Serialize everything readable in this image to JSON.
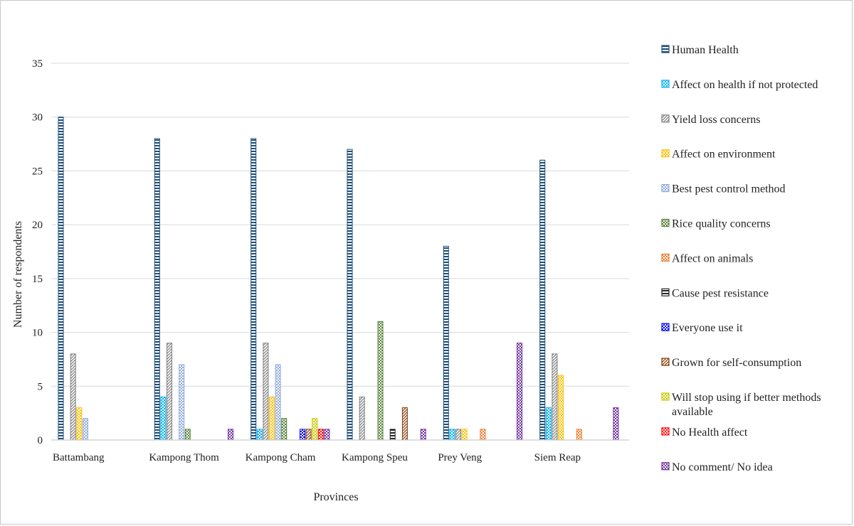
{
  "chart_data": {
    "type": "bar",
    "xlabel": "Provinces",
    "ylabel": "Number of respondents",
    "ylim": [
      0,
      35
    ],
    "yticks": [
      0,
      5,
      10,
      15,
      20,
      25,
      30,
      35
    ],
    "grid": true,
    "legend_position": "right",
    "categories": [
      "Battambang",
      "Kampong Thom",
      "Kampong Cham",
      "Kampong Speu",
      "Prey Veng",
      "Siem Reap"
    ],
    "series": [
      {
        "name": "Human Health",
        "color": "#1f4e79",
        "values": [
          30,
          28,
          28,
          27,
          18,
          26
        ]
      },
      {
        "name": "Affect on health if not protected",
        "color": "#00b0f0",
        "values": [
          0,
          4,
          1,
          0,
          1,
          3
        ]
      },
      {
        "name": "Yield loss concerns",
        "color": "#7f7f7f",
        "values": [
          8,
          9,
          9,
          4,
          1,
          8
        ]
      },
      {
        "name": "Affect on environment",
        "color": "#ffc000",
        "values": [
          3,
          0,
          4,
          0,
          1,
          6
        ]
      },
      {
        "name": "Best pest control method",
        "color": "#8faadc",
        "values": [
          2,
          7,
          7,
          0,
          0,
          0
        ]
      },
      {
        "name": "Rice quality concerns",
        "color": "#548235",
        "values": [
          0,
          1,
          2,
          11,
          0,
          0
        ]
      },
      {
        "name": "Affect on animals",
        "color": "#ed7d31",
        "values": [
          0,
          0,
          0,
          0,
          1,
          1
        ]
      },
      {
        "name": "Cause pest resistance",
        "color": "#262626",
        "values": [
          0,
          0,
          0,
          1,
          0,
          0
        ]
      },
      {
        "name": "Everyone use it",
        "color": "#0000ff",
        "values": [
          0,
          0,
          1,
          0,
          0,
          0
        ]
      },
      {
        "name": "Grown for self-consumption",
        "color": "#843c0c",
        "values": [
          0,
          0,
          1,
          3,
          0,
          0
        ]
      },
      {
        "name": "Will stop using if better methods available",
        "color": "#c9c900",
        "values": [
          0,
          0,
          2,
          0,
          0,
          0
        ]
      },
      {
        "name": "No Health affect",
        "color": "#ff0000",
        "values": [
          0,
          0,
          1,
          0,
          0,
          0
        ]
      },
      {
        "name": "No comment/ No idea",
        "color": "#7030a0",
        "values": [
          0,
          1,
          1,
          1,
          9,
          3
        ]
      }
    ],
    "legend_labels": [
      [
        "Human Health"
      ],
      [
        "Affect on health if not protected"
      ],
      [
        "Yield loss concerns"
      ],
      [
        "Affect on environment"
      ],
      [
        "Best pest control method"
      ],
      [
        "Rice quality concerns"
      ],
      [
        "Affect on animals"
      ],
      [
        "Cause pest resistance"
      ],
      [
        "Everyone use it"
      ],
      [
        "Grown for self-consumption"
      ],
      [
        "Will stop using if better methods",
        "available"
      ],
      [
        "No Health affect"
      ],
      [
        "No comment/ No idea"
      ]
    ]
  }
}
